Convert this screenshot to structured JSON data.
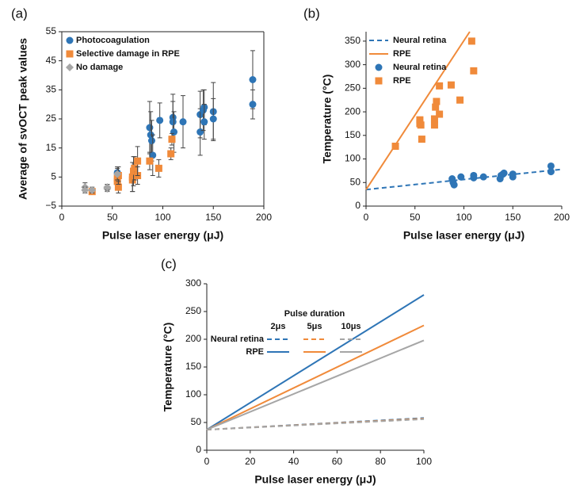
{
  "chart_data": [
    {
      "type": "scatter",
      "label": "(a)",
      "xlabel": "Pulse laser energy (μJ)",
      "ylabel": "Average of svOCT peak values",
      "xlim": [
        0,
        200
      ],
      "xticks": [
        0,
        50,
        100,
        150,
        200
      ],
      "ylim": [
        -5,
        55
      ],
      "yticks": [
        {
          "value": -5,
          "label": "−5"
        },
        5,
        15,
        25,
        35,
        45,
        55
      ],
      "box": true,
      "series": [
        {
          "name": "Photocoagulation",
          "color": "#2e75b6",
          "marker": "circle",
          "x": [
            55,
            87,
            88,
            89,
            90,
            97,
            110,
            110,
            111,
            120,
            137,
            137,
            140,
            141,
            141,
            150,
            150,
            189,
            189
          ],
          "y": [
            6.5,
            22,
            19.5,
            17.5,
            12.5,
            24.5,
            25.5,
            24,
            20.5,
            24,
            26.5,
            20.5,
            28,
            29,
            24,
            27.5,
            25,
            38.5,
            30
          ],
          "errors": [
            2,
            9,
            8,
            7,
            7,
            6,
            8,
            7,
            7,
            9,
            8,
            8,
            7,
            6,
            6,
            10,
            7,
            10,
            5
          ]
        },
        {
          "name": "Selective damage in RPE",
          "color": "#f08a3a",
          "marker": "square",
          "x": [
            30,
            55,
            55,
            56,
            56,
            70,
            70,
            71,
            72,
            75,
            75,
            87,
            96,
            108,
            109
          ],
          "y": [
            0,
            4.5,
            3.5,
            1.5,
            5.5,
            4,
            5,
            7,
            8,
            5.5,
            10.5,
            10.5,
            8,
            13,
            18
          ],
          "errors": [
            1,
            2,
            2,
            2,
            3,
            4,
            5,
            5,
            4,
            3,
            5,
            3,
            3,
            2,
            2
          ]
        },
        {
          "name": "No damage",
          "color": "#a6a6a6",
          "marker": "diamond",
          "x": [
            23,
            23,
            30,
            45,
            45,
            55
          ],
          "y": [
            1.5,
            0.5,
            0.5,
            1,
            1.5,
            6
          ],
          "errors": [
            1.5,
            1,
            1,
            1,
            1,
            2
          ]
        }
      ]
    },
    {
      "type": "line",
      "label": "(b)",
      "xlabel": "Pulse laser energy (μJ)",
      "ylabel": "Temperature (°C)",
      "xlim": [
        0,
        200
      ],
      "xticks": [
        0,
        50,
        100,
        150,
        200
      ],
      "ylim": [
        0,
        370
      ],
      "yticks": [
        0,
        50,
        100,
        150,
        200,
        250,
        300,
        350
      ],
      "series": [
        {
          "name": "Neural retina",
          "color": "#2e75b6",
          "dash": true,
          "x": [
            0,
            200
          ],
          "y": [
            35,
            78
          ]
        },
        {
          "name": "RPE",
          "color": "#f08a3a",
          "dash": false,
          "x": [
            0,
            106
          ],
          "y": [
            35,
            370
          ]
        },
        {
          "name": "Neural retina",
          "color": "#2e75b6",
          "marker": "circle",
          "x": [
            88,
            89,
            90,
            97,
            110,
            110,
            120,
            137,
            138,
            140,
            141,
            150,
            150,
            189,
            189
          ],
          "y": [
            58,
            50,
            45,
            62,
            60,
            65,
            62,
            58,
            65,
            68,
            70,
            62,
            68,
            85,
            73
          ]
        },
        {
          "name": "RPE",
          "color": "#f08a3a",
          "marker": "square",
          "x": [
            30,
            55,
            55,
            56,
            57,
            70,
            70,
            71,
            72,
            75,
            75,
            87,
            96,
            108,
            110
          ],
          "y": [
            127,
            183,
            175,
            172,
            142,
            172,
            185,
            210,
            222,
            195,
            255,
            257,
            225,
            350,
            287
          ]
        }
      ]
    },
    {
      "type": "line",
      "label": "(c)",
      "xlabel": "Pulse laser energy (μJ)",
      "ylabel": "Temperature (°C)",
      "xlim": [
        0,
        100
      ],
      "xticks": [
        0,
        20,
        40,
        60,
        80,
        100
      ],
      "ylim": [
        0,
        300
      ],
      "yticks": [
        0,
        50,
        100,
        150,
        200,
        250,
        300
      ],
      "legend_title": "Pulse duration",
      "series": [
        {
          "group": "Neural retina",
          "duration": "2μs",
          "color": "#2e75b6",
          "dash": true,
          "x": [
            0,
            100
          ],
          "y": [
            37,
            58
          ]
        },
        {
          "group": "Neural retina",
          "duration": "5μs",
          "color": "#f08a3a",
          "dash": true,
          "x": [
            0,
            100
          ],
          "y": [
            37,
            57
          ]
        },
        {
          "group": "Neural retina",
          "duration": "10μs",
          "color": "#a6a6a6",
          "dash": true,
          "x": [
            0,
            100
          ],
          "y": [
            37,
            56
          ]
        },
        {
          "group": "RPE",
          "duration": "2μs",
          "color": "#2e75b6",
          "dash": false,
          "x": [
            0,
            100
          ],
          "y": [
            37,
            280
          ]
        },
        {
          "group": "RPE",
          "duration": "5μs",
          "color": "#f08a3a",
          "dash": false,
          "x": [
            0,
            100
          ],
          "y": [
            37,
            225
          ]
        },
        {
          "group": "RPE",
          "duration": "10μs",
          "color": "#a6a6a6",
          "dash": false,
          "x": [
            0,
            100
          ],
          "y": [
            37,
            198
          ]
        }
      ]
    }
  ]
}
